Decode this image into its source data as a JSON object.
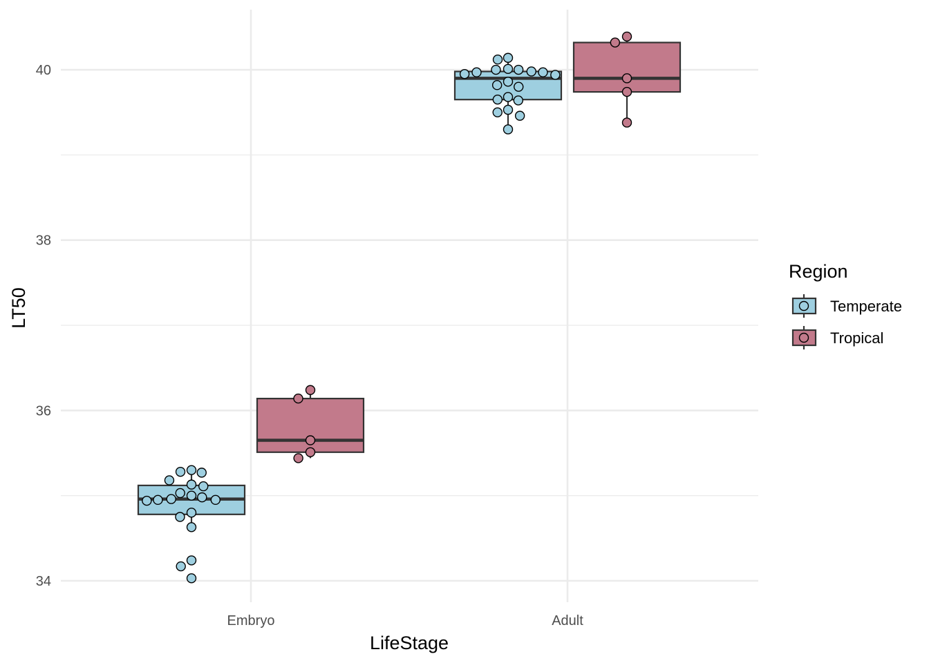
{
  "chart_data": {
    "type": "box",
    "xlabel": "LifeStage",
    "ylabel": "LT50",
    "categories": [
      "Embryo",
      "Adult"
    ],
    "ylim": [
      33.8,
      40.7
    ],
    "yticks": [
      34,
      36,
      38,
      40
    ],
    "grid": true,
    "legend": {
      "title": "Region",
      "placement": "right",
      "entries": [
        {
          "label": "Temperate",
          "color": "#9ecfe0"
        },
        {
          "label": "Tropical",
          "color": "#c27a8b"
        }
      ]
    },
    "series": [
      {
        "name": "Temperate",
        "color": "#9ecfe0",
        "boxes": [
          {
            "category": "Embryo",
            "min": 34.63,
            "q1": 34.78,
            "median": 34.96,
            "q3": 35.12,
            "max": 35.3,
            "points": [
              35.3,
              35.28,
              35.27,
              35.18,
              35.13,
              35.11,
              35.03,
              35.0,
              34.98,
              34.96,
              34.95,
              34.95,
              34.94,
              34.8,
              34.75,
              34.63,
              34.24,
              34.17,
              34.03
            ]
          },
          {
            "category": "Adult",
            "min": 39.3,
            "q1": 39.65,
            "median": 39.9,
            "q3": 39.98,
            "max": 40.13,
            "points": [
              40.14,
              40.12,
              40.01,
              40.0,
              40.0,
              39.98,
              39.97,
              39.97,
              39.95,
              39.94,
              39.86,
              39.82,
              39.8,
              39.68,
              39.65,
              39.64,
              39.53,
              39.5,
              39.46,
              39.3
            ]
          }
        ]
      },
      {
        "name": "Tropical",
        "color": "#c27a8b",
        "boxes": [
          {
            "category": "Embryo",
            "min": 35.44,
            "q1": 35.51,
            "median": 35.65,
            "q3": 36.14,
            "max": 36.24,
            "points": [
              36.24,
              36.14,
              35.65,
              35.51,
              35.44
            ]
          },
          {
            "category": "Adult",
            "min": 39.38,
            "q1": 39.74,
            "median": 39.9,
            "q3": 40.32,
            "max": 40.39,
            "points": [
              40.39,
              40.32,
              39.9,
              39.74,
              39.38
            ]
          }
        ]
      }
    ]
  }
}
